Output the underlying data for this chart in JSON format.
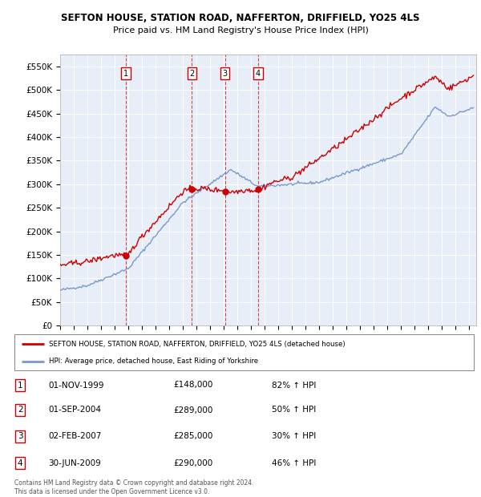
{
  "title": "SEFTON HOUSE, STATION ROAD, NAFFERTON, DRIFFIELD, YO25 4LS",
  "subtitle": "Price paid vs. HM Land Registry's House Price Index (HPI)",
  "ylim": [
    0,
    575000
  ],
  "yticks": [
    0,
    50000,
    100000,
    150000,
    200000,
    250000,
    300000,
    350000,
    400000,
    450000,
    500000,
    550000
  ],
  "sale_dates_num": [
    1999.833,
    2004.667,
    2007.083,
    2009.5
  ],
  "sale_prices": [
    148000,
    289000,
    285000,
    290000
  ],
  "sale_labels": [
    "1",
    "2",
    "3",
    "4"
  ],
  "red_color": "#cc0000",
  "blue_color": "#7799cc",
  "legend_label_red": "SEFTON HOUSE, STATION ROAD, NAFFERTON, DRIFFIELD, YO25 4LS (detached house)",
  "legend_label_blue": "HPI: Average price, detached house, East Riding of Yorkshire",
  "table_rows": [
    [
      "1",
      "01-NOV-1999",
      "£148,000",
      "82% ↑ HPI"
    ],
    [
      "2",
      "01-SEP-2004",
      "£289,000",
      "50% ↑ HPI"
    ],
    [
      "3",
      "02-FEB-2007",
      "£285,000",
      "30% ↑ HPI"
    ],
    [
      "4",
      "30-JUN-2009",
      "£290,000",
      "46% ↑ HPI"
    ]
  ],
  "footnote": "Contains HM Land Registry data © Crown copyright and database right 2024.\nThis data is licensed under the Open Government Licence v3.0.",
  "background_color": "#ffffff",
  "plot_bg_color": "#e8eef8"
}
